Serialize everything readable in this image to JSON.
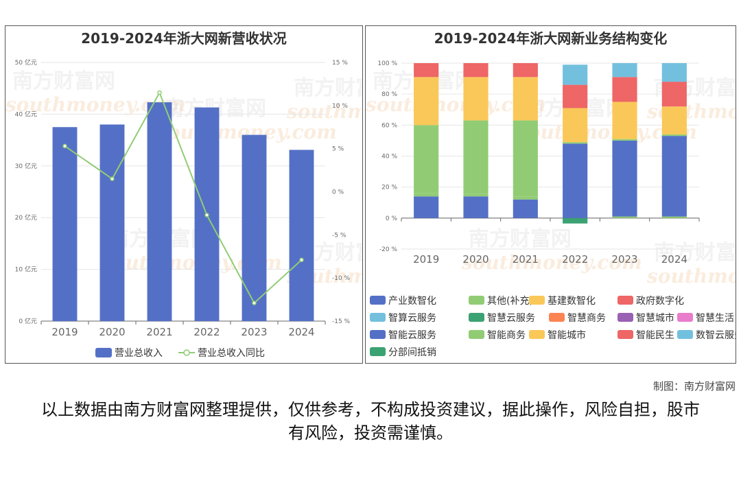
{
  "chart_data": [
    {
      "type": "bar",
      "title": "2019-2024年浙大网新营收状况",
      "categories": [
        "2019",
        "2020",
        "2021",
        "2022",
        "2023",
        "2024"
      ],
      "y_left_ticks": [
        "0 亿元",
        "10 亿元",
        "20 亿元",
        "30 亿元",
        "40 亿元",
        "50 亿元"
      ],
      "y_right_ticks": [
        "-15 %",
        "-10 %",
        "-5 %",
        "0 %",
        "5 %",
        "10 %",
        "15 %"
      ],
      "ylim": [
        0,
        50
      ],
      "y2lim": [
        -15,
        15
      ],
      "series": [
        {
          "name": "营业总收入",
          "kind": "bar",
          "color": "#5470c6",
          "values": [
            37.5,
            38.0,
            42.3,
            41.3,
            36.0,
            33.1
          ]
        },
        {
          "name": "营业总收入同比",
          "kind": "line",
          "color": "#91cc75",
          "values": [
            5.3,
            1.5,
            11.5,
            -2.7,
            -12.9,
            -7.9
          ]
        }
      ],
      "legend": "bottom"
    },
    {
      "type": "bar",
      "stacked": true,
      "title": "2019-2024年浙大网新业务结构变化",
      "categories": [
        "2019",
        "2020",
        "2021",
        "2022",
        "2023",
        "2024"
      ],
      "y_ticks": [
        "-20 %",
        "0 %",
        "20 %",
        "40 %",
        "60 %",
        "80 %",
        "100 %"
      ],
      "ylim": [
        -20,
        100
      ],
      "series": [
        {
          "name": "产业数智化",
          "color": "#5470c6",
          "values": [
            14,
            14,
            12,
            0,
            0,
            0
          ]
        },
        {
          "name": "其他(补充)",
          "color": "#91cc75",
          "values": [
            2,
            1.5,
            2,
            0,
            1,
            1
          ]
        },
        {
          "name": "基建数智化",
          "color": "#fac858",
          "values": [
            0,
            0,
            0,
            0,
            0,
            0
          ]
        },
        {
          "name": "政府数字化",
          "color": "#ee6666",
          "values": [
            0,
            0,
            0,
            0,
            0,
            0
          ]
        },
        {
          "name": "智算云服务",
          "color": "#73c0de",
          "values": [
            0,
            0,
            0,
            0,
            0,
            0
          ]
        },
        {
          "name": "智慧云服务",
          "color": "#3ba272",
          "values": [
            0,
            0,
            0,
            0,
            0,
            0
          ]
        },
        {
          "name": "智慧商务",
          "color": "#fc8452",
          "values": [
            0,
            0,
            0,
            0,
            0,
            0
          ]
        },
        {
          "name": "智慧城市",
          "color": "#9a60b4",
          "values": [
            0,
            0,
            0,
            0,
            0,
            0
          ]
        },
        {
          "name": "智慧生活",
          "color": "#ea7ccc",
          "values": [
            0,
            0,
            0,
            0,
            0,
            0
          ]
        },
        {
          "name": "智能云服务",
          "color": "#5470c6",
          "values": [
            0,
            0,
            0,
            48,
            49,
            52
          ]
        },
        {
          "name": "智能商务",
          "color": "#91cc75",
          "values": [
            44,
            47.5,
            49,
            1,
            1,
            1
          ]
        },
        {
          "name": "智能城市",
          "color": "#fac858",
          "values": [
            31,
            28,
            28,
            22,
            24,
            18
          ]
        },
        {
          "name": "智能民生",
          "color": "#ee6666",
          "values": [
            9,
            9,
            9,
            15,
            16,
            16
          ]
        },
        {
          "name": "数智云服务",
          "color": "#73c0de",
          "values": [
            0,
            0,
            0,
            13,
            9,
            12
          ]
        },
        {
          "name": "分部间抵销",
          "color": "#3ba272",
          "values": [
            0,
            0,
            0,
            -3.5,
            0,
            0
          ]
        }
      ],
      "legend": "bottom"
    }
  ],
  "watermark": {
    "cn": "南方财富网",
    "en": "southmoney.com"
  },
  "credit": "制图：南方财富网",
  "disclaimer": "以上数据由南方财富网整理提供，仅供参考，不构成投资建议，据此操作，风险自担，股市有风险，投资需谨慎。"
}
